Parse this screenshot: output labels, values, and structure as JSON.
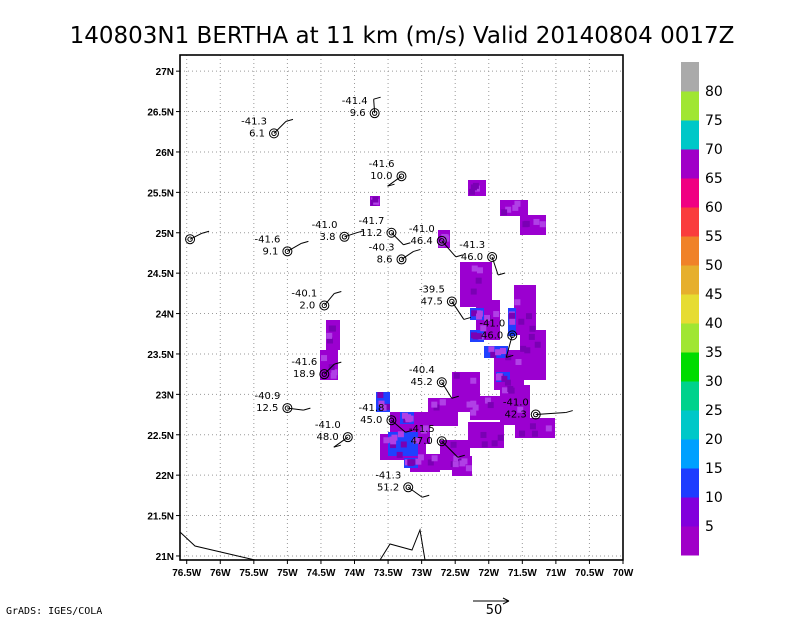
{
  "chart_data": {
    "type": "scatter",
    "title": "140803N1 BERTHA at 11 km (m/s) Valid 20140804 0017Z",
    "x_ticks": [
      "76.5W",
      "76W",
      "75.5W",
      "75W",
      "74.5W",
      "74W",
      "73.5W",
      "73W",
      "72.5W",
      "72W",
      "71.5W",
      "71W",
      "70.5W",
      "70W"
    ],
    "y_ticks": [
      "21N",
      "21.5N",
      "22N",
      "22.5N",
      "23N",
      "23.5N",
      "24N",
      "24.5N",
      "25N",
      "25.5N",
      "26N",
      "26.5N",
      "27N"
    ],
    "xlim": [
      -76.6,
      -70.0
    ],
    "ylim": [
      20.95,
      27.2
    ],
    "grid": true,
    "colorbar": {
      "labels": [
        "5",
        "10",
        "15",
        "20",
        "25",
        "30",
        "35",
        "40",
        "45",
        "50",
        "55",
        "60",
        "65",
        "70",
        "75",
        "80"
      ],
      "colors": [
        "#a000c8",
        "#8200dc",
        "#1e3cff",
        "#00a0ff",
        "#00c8c8",
        "#00d28c",
        "#00dc00",
        "#a0e632",
        "#e6dc32",
        "#e6af2d",
        "#f08228",
        "#fa3c3c",
        "#f00082",
        "#a000c8",
        "#00c8c8",
        "#a0e632",
        "#aaaaaa"
      ]
    },
    "dropsondes": [
      {
        "lon": -73.7,
        "lat": 26.48,
        "t": "-41.4",
        "v": "9.6"
      },
      {
        "lon": -75.2,
        "lat": 26.23,
        "t": "-41.3",
        "v": "6.1"
      },
      {
        "lon": -73.3,
        "lat": 25.7,
        "t": "-41.6",
        "v": "10.0"
      },
      {
        "lon": -76.45,
        "lat": 24.92,
        "t": "",
        "v": ""
      },
      {
        "lon": -74.15,
        "lat": 24.95,
        "t": "-41.0",
        "v": "3.8"
      },
      {
        "lon": -73.45,
        "lat": 25.0,
        "t": "-41.7",
        "v": "11.2"
      },
      {
        "lon": -75.0,
        "lat": 24.77,
        "t": "-41.6",
        "v": "9.1"
      },
      {
        "lon": -73.3,
        "lat": 24.67,
        "t": "-40.3",
        "v": "8.6"
      },
      {
        "lon": -72.7,
        "lat": 24.9,
        "t": "-41.0",
        "v": "46.4"
      },
      {
        "lon": -71.95,
        "lat": 24.7,
        "t": "-41.3",
        "v": "46.0"
      },
      {
        "lon": -74.45,
        "lat": 24.1,
        "t": "-40.1",
        "v": "2.0"
      },
      {
        "lon": -72.55,
        "lat": 24.15,
        "t": "-39.5",
        "v": "47.5"
      },
      {
        "lon": -71.65,
        "lat": 23.73,
        "t": "-41.0",
        "v": "46.0"
      },
      {
        "lon": -74.45,
        "lat": 23.25,
        "t": "-41.6",
        "v": "18.9"
      },
      {
        "lon": -72.7,
        "lat": 23.15,
        "t": "-40.4",
        "v": "45.2"
      },
      {
        "lon": -75.0,
        "lat": 22.83,
        "t": "-40.9",
        "v": "12.5"
      },
      {
        "lon": -71.3,
        "lat": 22.75,
        "t": "-41.0",
        "v": "42.3"
      },
      {
        "lon": -73.45,
        "lat": 22.68,
        "t": "-41.8",
        "v": "45.0"
      },
      {
        "lon": -74.1,
        "lat": 22.47,
        "t": "-41.0",
        "v": "48.0"
      },
      {
        "lon": -72.7,
        "lat": 22.42,
        "t": "-41.5",
        "v": "47.0"
      },
      {
        "lon": -73.2,
        "lat": 21.85,
        "t": "-41.3",
        "v": "51.2"
      }
    ],
    "reference_vector": "50"
  },
  "footer": "GrADS: IGES/COLA"
}
